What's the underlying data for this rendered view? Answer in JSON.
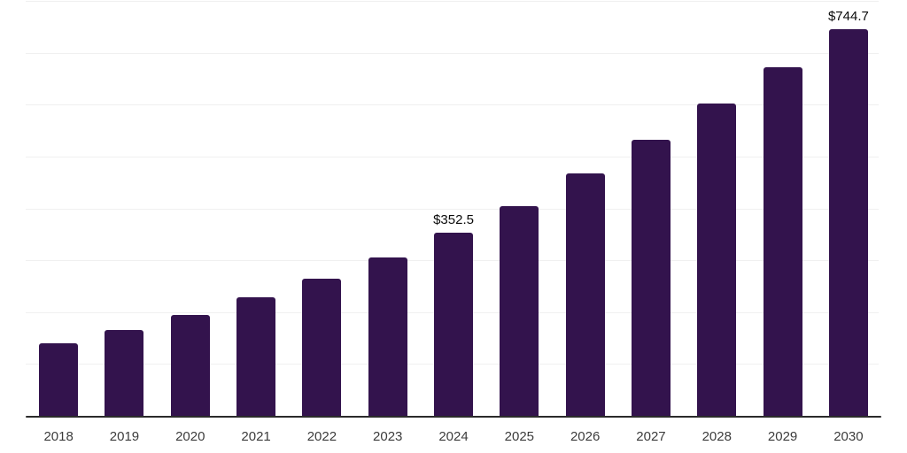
{
  "chart_data": {
    "type": "bar",
    "title": "",
    "xlabel": "",
    "ylabel": "",
    "categories": [
      "2018",
      "2019",
      "2020",
      "2021",
      "2022",
      "2023",
      "2024",
      "2025",
      "2026",
      "2027",
      "2028",
      "2029",
      "2030"
    ],
    "values": [
      140,
      165,
      194,
      228,
      264,
      306,
      352.5,
      405,
      468,
      533,
      603,
      672,
      744.7
    ],
    "data_labels": [
      "",
      "",
      "",
      "",
      "",
      "",
      "$352.5",
      "",
      "",
      "",
      "",
      "",
      "$744.7"
    ],
    "value_prefix": "$",
    "ylim": [
      0,
      800
    ],
    "grid_step": 100,
    "grid": true,
    "y_tick_labels_shown": false,
    "legend_position": "none",
    "colors": {
      "bar": "#33134D",
      "gridline": "#F0F0F0",
      "axis_line": "#2B2B2B",
      "tick_label": "#3C3C3C",
      "data_label": "#0B0B0B",
      "background": "#FFFFFF"
    }
  }
}
